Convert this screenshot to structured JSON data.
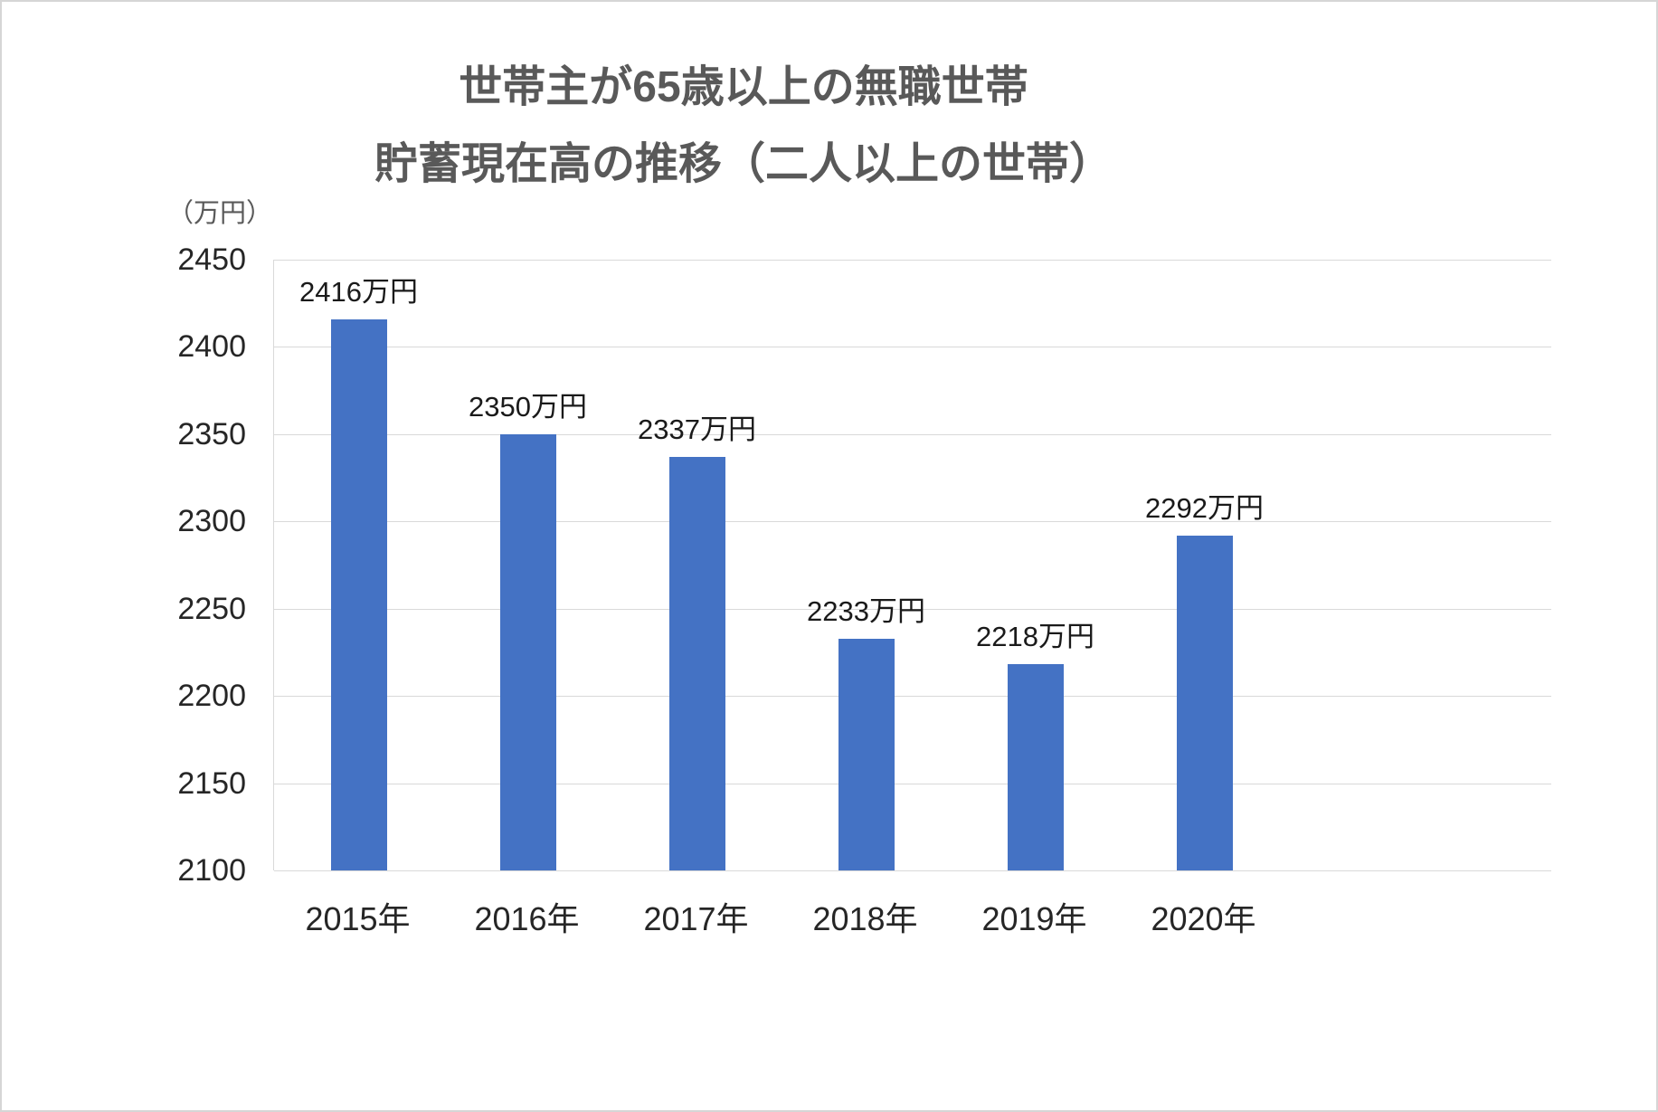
{
  "page": {
    "background": "#ffffff",
    "border_color": "#d6d6d6"
  },
  "colors": {
    "bar": "#4472C4",
    "gridline": "#d9d9d9",
    "title_text": "#595959",
    "axis_text": "#262626"
  },
  "chart_data": {
    "type": "bar",
    "title_line1": "世帯主が65歳以上の無職世帯",
    "title_line2": "貯蓄現在高の推移（二人以上の世帯）",
    "unit_label": "（万円）",
    "categories": [
      "2015年",
      "2016年",
      "2017年",
      "2018年",
      "2019年",
      "2020年"
    ],
    "values": [
      2416,
      2350,
      2337,
      2233,
      2218,
      2292
    ],
    "bar_labels": [
      "2416万円",
      "2350万円",
      "2337万円",
      "2233万円",
      "2218万円",
      "2292万円"
    ],
    "ylabel": "（万円）",
    "xlabel": "",
    "ylim": [
      2100,
      2450
    ],
    "ytick_interval": 50,
    "yticks": [
      2450,
      2400,
      2350,
      2300,
      2250,
      2200,
      2150,
      2100
    ],
    "grid": true,
    "legend_position": "none"
  }
}
